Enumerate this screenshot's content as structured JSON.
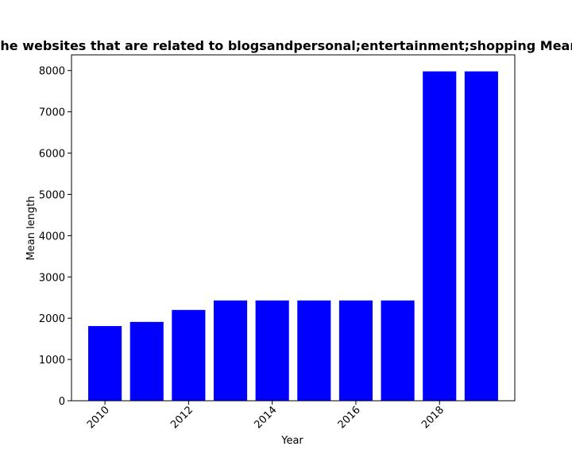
{
  "chart_data": {
    "type": "bar",
    "title": "Mean length of the websites that are related to blogsandpersonal;entertainment;shopping Mean length in private",
    "xlabel": "Year",
    "ylabel": "Mean length",
    "x": [
      2010,
      2011,
      2012,
      2013,
      2014,
      2015,
      2016,
      2017,
      2018,
      2019
    ],
    "values": [
      1810,
      1910,
      2200,
      2430,
      2430,
      2430,
      2430,
      2430,
      7980,
      7980
    ],
    "xticks": [
      2010,
      2012,
      2014,
      2016,
      2018
    ],
    "yticks": [
      0,
      1000,
      2000,
      3000,
      4000,
      5000,
      6000,
      7000,
      8000
    ],
    "xlim": [
      2009.2,
      2019.8
    ],
    "ylim": [
      0,
      8380
    ],
    "bar_color": "#0000ff",
    "grid": false,
    "legend": "none"
  }
}
